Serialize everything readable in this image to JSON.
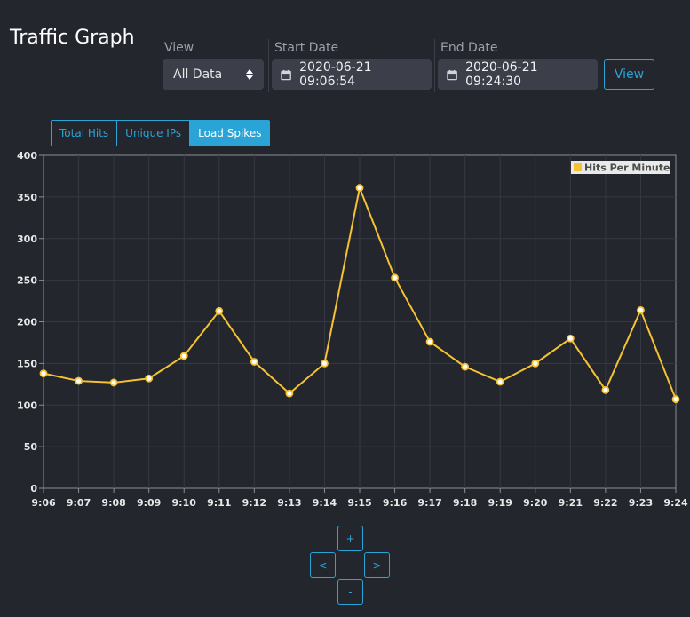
{
  "page": {
    "title": "Traffic Graph"
  },
  "filters": {
    "view_label": "View",
    "view_value": "All Data",
    "start_label": "Start Date",
    "start_value": "2020-06-21 09:06:54",
    "end_label": "End Date",
    "end_value": "2020-06-21 09:24:30",
    "view_button": "View"
  },
  "tabs": [
    {
      "label": "Total Hits",
      "active": false
    },
    {
      "label": "Unique IPs",
      "active": false
    },
    {
      "label": "Load Spikes",
      "active": true
    }
  ],
  "nav": {
    "up": "+",
    "left": "<",
    "right": ">",
    "down": "-"
  },
  "colors": {
    "accent": "#2aa4d6",
    "series": "#f5c231",
    "background": "#24262e"
  },
  "icons": {
    "date": "calendar-icon",
    "select": "up-down-arrows-icon"
  },
  "chart_data": {
    "type": "line",
    "title": "",
    "xlabel": "",
    "ylabel": "",
    "ylim": [
      0,
      400
    ],
    "yticks": [
      0,
      50,
      100,
      150,
      200,
      250,
      300,
      350,
      400
    ],
    "grid": true,
    "legend_position": "top-right",
    "categories": [
      "9:06",
      "9:07",
      "9:08",
      "9:09",
      "9:10",
      "9:11",
      "9:12",
      "9:13",
      "9:14",
      "9:15",
      "9:16",
      "9:17",
      "9:18",
      "9:19",
      "9:20",
      "9:21",
      "9:22",
      "9:23",
      "9:24"
    ],
    "series": [
      {
        "name": "Hits Per Minute",
        "color": "#f5c231",
        "values": [
          138,
          129,
          127,
          132,
          159,
          213,
          152,
          114,
          150,
          361,
          253,
          176,
          146,
          128,
          150,
          180,
          118,
          214,
          107
        ]
      }
    ]
  }
}
